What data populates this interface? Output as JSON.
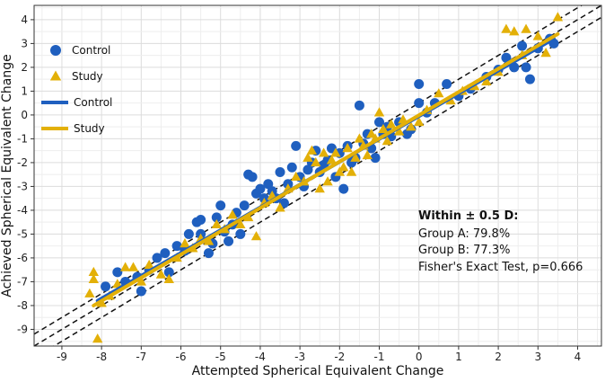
{
  "chart_data": {
    "type": "scatter",
    "xlabel": "Attempted Spherical Equivalent Change",
    "ylabel": "Achieved Spherical Equivalent Change",
    "xlim": [
      -9.7,
      4.6
    ],
    "ylim": [
      -9.7,
      4.6
    ],
    "xticks": [
      -9,
      -8,
      -7,
      -6,
      -5,
      -4,
      -3,
      -2,
      -1,
      0,
      1,
      2,
      3,
      4
    ],
    "yticks": [
      -9,
      -8,
      -7,
      -6,
      -5,
      -4,
      -3,
      -2,
      -1,
      0,
      1,
      2,
      3,
      4
    ],
    "grid": true,
    "legend_placement": "top-left",
    "colors": {
      "control": "#1f5fbf",
      "study": "#e3b008",
      "reference": "#111111"
    },
    "reference_lines": [
      {
        "style": "dashed",
        "offset": 0
      },
      {
        "style": "dashed",
        "offset": 0.5
      },
      {
        "style": "dashed",
        "offset": -0.5
      }
    ],
    "legend": [
      {
        "label": "Control",
        "kind": "circle",
        "color": "#1f5fbf"
      },
      {
        "label": "Study",
        "kind": "triangle",
        "color": "#e3b008"
      },
      {
        "label": "Control",
        "kind": "line",
        "color": "#1f5fbf"
      },
      {
        "label": "Study",
        "kind": "line",
        "color": "#e3b008"
      }
    ],
    "series": [
      {
        "name": "Control",
        "marker": "circle",
        "color": "#1f5fbf",
        "fit": {
          "x": [
            -8.1,
            3.4
          ],
          "y": [
            -7.8,
            3.2
          ]
        },
        "points": [
          [
            -7.9,
            -7.2
          ],
          [
            -7.6,
            -6.6
          ],
          [
            -7.4,
            -7.0
          ],
          [
            -7.1,
            -6.8
          ],
          [
            -7.0,
            -7.4
          ],
          [
            -6.8,
            -6.5
          ],
          [
            -6.6,
            -6.0
          ],
          [
            -6.4,
            -5.8
          ],
          [
            -6.3,
            -6.6
          ],
          [
            -6.1,
            -5.5
          ],
          [
            -5.9,
            -5.7
          ],
          [
            -5.8,
            -5.0
          ],
          [
            -5.6,
            -4.5
          ],
          [
            -5.5,
            -4.4
          ],
          [
            -5.5,
            -5.0
          ],
          [
            -5.3,
            -5.8
          ],
          [
            -5.2,
            -5.4
          ],
          [
            -5.1,
            -4.3
          ],
          [
            -5.0,
            -3.8
          ],
          [
            -4.9,
            -4.9
          ],
          [
            -4.8,
            -5.3
          ],
          [
            -4.7,
            -4.6
          ],
          [
            -4.6,
            -4.1
          ],
          [
            -4.5,
            -5.0
          ],
          [
            -4.4,
            -3.8
          ],
          [
            -4.3,
            -2.5
          ],
          [
            -4.2,
            -2.6
          ],
          [
            -4.1,
            -3.3
          ],
          [
            -4.0,
            -3.1
          ],
          [
            -3.9,
            -3.5
          ],
          [
            -3.8,
            -2.9
          ],
          [
            -3.7,
            -3.2
          ],
          [
            -3.6,
            -3.5
          ],
          [
            -3.5,
            -2.4
          ],
          [
            -3.4,
            -3.7
          ],
          [
            -3.3,
            -2.9
          ],
          [
            -3.2,
            -2.2
          ],
          [
            -3.1,
            -1.3
          ],
          [
            -3.0,
            -2.6
          ],
          [
            -2.9,
            -3.0
          ],
          [
            -2.8,
            -2.3
          ],
          [
            -2.7,
            -2.0
          ],
          [
            -2.6,
            -1.5
          ],
          [
            -2.5,
            -2.4
          ],
          [
            -2.4,
            -2.1
          ],
          [
            -2.3,
            -1.9
          ],
          [
            -2.2,
            -1.4
          ],
          [
            -2.1,
            -2.6
          ],
          [
            -2.0,
            -1.6
          ],
          [
            -1.9,
            -3.1
          ],
          [
            -1.8,
            -1.3
          ],
          [
            -1.7,
            -2.0
          ],
          [
            -1.6,
            -1.8
          ],
          [
            -1.5,
            0.4
          ],
          [
            -1.4,
            -1.2
          ],
          [
            -1.3,
            -0.8
          ],
          [
            -1.2,
            -1.4
          ],
          [
            -1.1,
            -1.8
          ],
          [
            -1.0,
            -0.3
          ],
          [
            -0.9,
            -0.8
          ],
          [
            -0.8,
            -0.5
          ],
          [
            -0.7,
            -0.9
          ],
          [
            -0.5,
            -0.3
          ],
          [
            -0.3,
            -0.8
          ],
          [
            -0.2,
            -0.6
          ],
          [
            0.0,
            1.3
          ],
          [
            0.0,
            0.5
          ],
          [
            0.2,
            0.1
          ],
          [
            0.4,
            0.5
          ],
          [
            0.7,
            1.3
          ],
          [
            1.0,
            0.8
          ],
          [
            1.3,
            1.1
          ],
          [
            1.7,
            1.6
          ],
          [
            2.0,
            1.9
          ],
          [
            2.2,
            2.4
          ],
          [
            2.4,
            2.0
          ],
          [
            2.6,
            2.9
          ],
          [
            2.7,
            2.0
          ],
          [
            2.8,
            1.5
          ],
          [
            3.0,
            2.8
          ],
          [
            3.3,
            3.2
          ],
          [
            3.4,
            3.0
          ]
        ]
      },
      {
        "name": "Study",
        "marker": "triangle",
        "color": "#e3b008",
        "fit": {
          "x": [
            -8.2,
            3.5
          ],
          "y": [
            -8.0,
            3.4
          ]
        },
        "points": [
          [
            -8.3,
            -7.5
          ],
          [
            -8.2,
            -6.6
          ],
          [
            -8.2,
            -6.9
          ],
          [
            -8.1,
            -9.4
          ],
          [
            -8.0,
            -7.9
          ],
          [
            -7.8,
            -7.6
          ],
          [
            -7.6,
            -7.1
          ],
          [
            -7.4,
            -6.4
          ],
          [
            -7.2,
            -6.4
          ],
          [
            -7.0,
            -7.0
          ],
          [
            -6.8,
            -6.3
          ],
          [
            -6.5,
            -6.7
          ],
          [
            -6.3,
            -6.9
          ],
          [
            -6.1,
            -6.0
          ],
          [
            -5.9,
            -5.4
          ],
          [
            -5.7,
            -5.6
          ],
          [
            -5.5,
            -5.2
          ],
          [
            -5.3,
            -5.3
          ],
          [
            -5.1,
            -4.6
          ],
          [
            -4.9,
            -4.8
          ],
          [
            -4.7,
            -4.2
          ],
          [
            -4.5,
            -4.6
          ],
          [
            -4.3,
            -4.3
          ],
          [
            -4.1,
            -5.1
          ],
          [
            -3.9,
            -3.7
          ],
          [
            -3.7,
            -3.4
          ],
          [
            -3.5,
            -3.9
          ],
          [
            -3.3,
            -3.1
          ],
          [
            -3.1,
            -2.6
          ],
          [
            -2.9,
            -2.8
          ],
          [
            -2.8,
            -1.8
          ],
          [
            -2.7,
            -1.5
          ],
          [
            -2.6,
            -2.0
          ],
          [
            -2.5,
            -3.1
          ],
          [
            -2.4,
            -1.6
          ],
          [
            -2.3,
            -2.8
          ],
          [
            -2.2,
            -1.9
          ],
          [
            -2.1,
            -1.6
          ],
          [
            -2.0,
            -2.4
          ],
          [
            -1.9,
            -2.2
          ],
          [
            -1.8,
            -1.4
          ],
          [
            -1.7,
            -2.4
          ],
          [
            -1.6,
            -1.8
          ],
          [
            -1.5,
            -1.0
          ],
          [
            -1.4,
            -1.3
          ],
          [
            -1.3,
            -1.7
          ],
          [
            -1.2,
            -0.8
          ],
          [
            -1.1,
            -1.0
          ],
          [
            -1.0,
            0.1
          ],
          [
            -0.9,
            -0.6
          ],
          [
            -0.8,
            -1.1
          ],
          [
            -0.7,
            -0.4
          ],
          [
            -0.5,
            -0.7
          ],
          [
            -0.4,
            -0.2
          ],
          [
            -0.2,
            -0.5
          ],
          [
            0.0,
            -0.3
          ],
          [
            0.2,
            0.2
          ],
          [
            0.5,
            0.9
          ],
          [
            0.8,
            0.6
          ],
          [
            1.1,
            1.0
          ],
          [
            1.4,
            1.2
          ],
          [
            1.7,
            1.4
          ],
          [
            2.0,
            1.8
          ],
          [
            2.2,
            3.6
          ],
          [
            2.4,
            3.5
          ],
          [
            2.6,
            2.5
          ],
          [
            2.7,
            3.6
          ],
          [
            3.0,
            3.3
          ],
          [
            3.2,
            2.6
          ],
          [
            3.5,
            4.1
          ]
        ]
      }
    ],
    "annotation": {
      "title": "Within ± 0.5 D:",
      "lines": [
        "Group A: 79.8%",
        "Group B: 77.3%",
        "Fisher's Exact Test, p=0.666"
      ]
    }
  }
}
